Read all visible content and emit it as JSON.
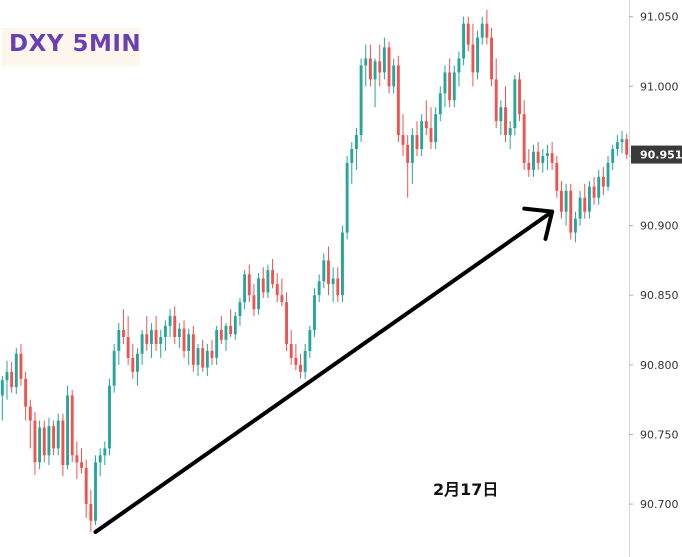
{
  "chart_data": {
    "type": "candlestick",
    "title": "DXY 5MIN",
    "annotation": "2月17日",
    "y_ticks": [
      "91.050",
      "91.000",
      "90.950",
      "90.900",
      "90.850",
      "90.800",
      "90.750",
      "90.700"
    ],
    "y_tick_values": [
      91.05,
      91.0,
      90.95,
      90.9,
      90.85,
      90.8,
      90.75,
      90.7
    ],
    "ylim": [
      90.662,
      91.062
    ],
    "last_price": "90.951",
    "grid": false,
    "colors": {
      "up": "#26a69a",
      "down": "#ef5350",
      "arrow": "#000000",
      "title": "#6a3fb0",
      "price_tag": "#3a3a3a"
    },
    "arrow": {
      "from": {
        "bar": 20,
        "price": 90.68
      },
      "to": {
        "bar": 118,
        "price": 90.91
      }
    },
    "candles": [
      [
        90.778,
        90.792,
        90.76,
        90.789
      ],
      [
        90.789,
        90.803,
        90.775,
        90.795
      ],
      [
        90.795,
        90.802,
        90.78,
        90.784
      ],
      [
        90.784,
        90.812,
        90.779,
        90.808
      ],
      [
        90.808,
        90.815,
        90.785,
        90.79
      ],
      [
        90.79,
        90.795,
        90.76,
        90.77
      ],
      [
        90.77,
        90.775,
        90.74,
        90.76
      ],
      [
        90.76,
        90.766,
        90.721,
        90.73
      ],
      [
        90.73,
        90.76,
        90.725,
        90.755
      ],
      [
        90.755,
        90.76,
        90.73,
        90.735
      ],
      [
        90.735,
        90.762,
        90.728,
        90.756
      ],
      [
        90.756,
        90.76,
        90.735,
        90.74
      ],
      [
        90.74,
        90.765,
        90.735,
        90.76
      ],
      [
        90.76,
        90.765,
        90.72,
        90.728
      ],
      [
        90.728,
        90.785,
        90.725,
        90.778
      ],
      [
        90.778,
        90.782,
        90.73,
        90.735
      ],
      [
        90.735,
        90.745,
        90.718,
        90.73
      ],
      [
        90.73,
        90.74,
        90.722,
        90.726
      ],
      [
        90.726,
        90.732,
        90.69,
        90.7
      ],
      [
        90.7,
        90.71,
        90.68,
        90.688
      ],
      [
        90.688,
        90.735,
        90.685,
        90.73
      ],
      [
        90.73,
        90.74,
        90.72,
        90.735
      ],
      [
        90.735,
        90.745,
        90.728,
        90.74
      ],
      [
        90.74,
        90.79,
        90.735,
        90.785
      ],
      [
        90.785,
        90.815,
        90.78,
        90.81
      ],
      [
        90.81,
        90.83,
        90.8,
        90.825
      ],
      [
        90.825,
        90.84,
        90.815,
        90.82
      ],
      [
        90.82,
        90.835,
        90.8,
        90.805
      ],
      [
        90.805,
        90.815,
        90.79,
        90.795
      ],
      [
        90.795,
        90.812,
        90.785,
        90.808
      ],
      [
        90.808,
        90.825,
        90.8,
        90.822
      ],
      [
        90.822,
        90.835,
        90.81,
        90.815
      ],
      [
        90.815,
        90.83,
        90.805,
        90.825
      ],
      [
        90.825,
        90.835,
        90.81,
        90.815
      ],
      [
        90.815,
        90.825,
        90.805,
        90.82
      ],
      [
        90.82,
        90.832,
        90.81,
        90.828
      ],
      [
        90.828,
        90.84,
        90.82,
        90.835
      ],
      [
        90.835,
        90.842,
        90.815,
        90.82
      ],
      [
        90.82,
        90.83,
        90.812,
        90.826
      ],
      [
        90.826,
        90.832,
        90.805,
        90.81
      ],
      [
        90.81,
        90.826,
        90.8,
        90.822
      ],
      [
        90.822,
        90.828,
        90.795,
        90.8
      ],
      [
        90.8,
        90.815,
        90.792,
        90.812
      ],
      [
        90.812,
        90.818,
        90.795,
        90.798
      ],
      [
        90.798,
        90.815,
        90.792,
        90.81
      ],
      [
        90.81,
        90.818,
        90.8,
        90.805
      ],
      [
        90.805,
        90.828,
        90.8,
        90.825
      ],
      [
        90.825,
        90.835,
        90.815,
        90.818
      ],
      [
        90.818,
        90.83,
        90.81,
        90.828
      ],
      [
        90.828,
        90.84,
        90.82,
        90.822
      ],
      [
        90.822,
        90.838,
        90.818,
        90.835
      ],
      [
        90.835,
        90.848,
        90.828,
        90.845
      ],
      [
        90.845,
        90.868,
        90.84,
        90.865
      ],
      [
        90.865,
        90.872,
        90.845,
        90.85
      ],
      [
        90.85,
        90.858,
        90.835,
        90.84
      ],
      [
        90.84,
        90.866,
        90.836,
        90.862
      ],
      [
        90.862,
        90.87,
        90.848,
        90.852
      ],
      [
        90.852,
        90.872,
        90.848,
        90.868
      ],
      [
        90.868,
        90.876,
        90.855,
        90.858
      ],
      [
        90.858,
        90.866,
        90.845,
        90.85
      ],
      [
        90.85,
        90.862,
        90.842,
        90.845
      ],
      [
        90.845,
        90.852,
        90.81,
        90.815
      ],
      [
        90.815,
        90.825,
        90.8,
        90.805
      ],
      [
        90.805,
        90.815,
        90.796,
        90.8
      ],
      [
        90.8,
        90.808,
        90.79,
        90.795
      ],
      [
        90.795,
        90.815,
        90.79,
        90.81
      ],
      [
        90.81,
        90.828,
        90.805,
        90.825
      ],
      [
        90.825,
        90.855,
        90.82,
        90.85
      ],
      [
        90.85,
        90.865,
        90.845,
        90.86
      ],
      [
        90.86,
        90.88,
        90.855,
        90.875
      ],
      [
        90.875,
        90.885,
        90.85,
        90.858
      ],
      [
        90.858,
        90.87,
        90.845,
        90.862
      ],
      [
        90.862,
        90.87,
        90.845,
        90.85
      ],
      [
        90.85,
        90.9,
        90.845,
        90.895
      ],
      [
        90.895,
        90.95,
        90.89,
        90.945
      ],
      [
        90.945,
        90.96,
        90.93,
        90.955
      ],
      [
        90.955,
        90.97,
        90.94,
        90.965
      ],
      [
        90.965,
        91.02,
        90.96,
        91.015
      ],
      [
        91.015,
        91.03,
        91.0,
        91.02
      ],
      [
        91.02,
        91.03,
        91.0,
        91.005
      ],
      [
        91.005,
        91.02,
        90.985,
        91.018
      ],
      [
        91.018,
        91.03,
        91.0,
        91.01
      ],
      [
        91.01,
        91.035,
        91.005,
        91.028
      ],
      [
        91.028,
        91.032,
        90.995,
        91.0
      ],
      [
        91.0,
        91.02,
        90.995,
        91.015
      ],
      [
        91.015,
        91.022,
        90.96,
        90.965
      ],
      [
        90.965,
        90.98,
        90.95,
        90.958
      ],
      [
        90.958,
        90.965,
        90.92,
        90.945
      ],
      [
        90.945,
        90.97,
        90.93,
        90.965
      ],
      [
        90.965,
        90.975,
        90.95,
        90.955
      ],
      [
        90.955,
        90.98,
        90.95,
        90.975
      ],
      [
        90.975,
        90.99,
        90.965,
        90.97
      ],
      [
        90.97,
        90.985,
        90.955,
        90.96
      ],
      [
        90.96,
        90.985,
        90.955,
        90.98
      ],
      [
        90.98,
        91.0,
        90.975,
        90.995
      ],
      [
        90.995,
        91.015,
        90.985,
        91.01
      ],
      [
        91.01,
        91.02,
        90.985,
        90.99
      ],
      [
        90.99,
        91.015,
        90.985,
        91.01
      ],
      [
        91.01,
        91.025,
        91.0,
        91.02
      ],
      [
        91.02,
        91.05,
        91.015,
        91.045
      ],
      [
        91.045,
        91.05,
        91.025,
        91.03
      ],
      [
        91.03,
        91.045,
        91.0,
        91.01
      ],
      [
        91.01,
        91.04,
        91.005,
        91.035
      ],
      [
        91.035,
        91.05,
        91.03,
        91.045
      ],
      [
        91.045,
        91.055,
        91.03,
        91.035
      ],
      [
        91.035,
        91.042,
        91.0,
        91.005
      ],
      [
        91.005,
        91.02,
        90.97,
        90.975
      ],
      [
        90.975,
        90.99,
        90.965,
        90.985
      ],
      [
        90.985,
        91.0,
        90.96,
        90.965
      ],
      [
        90.965,
        90.975,
        90.955,
        90.97
      ],
      [
        90.97,
        91.008,
        90.965,
        91.005
      ],
      [
        91.005,
        91.01,
        90.975,
        90.98
      ],
      [
        90.98,
        90.99,
        90.94,
        90.945
      ],
      [
        90.945,
        90.955,
        90.935,
        90.94
      ],
      [
        90.94,
        90.958,
        90.935,
        90.953
      ],
      [
        90.953,
        90.96,
        90.94,
        90.945
      ],
      [
        90.945,
        90.955,
        90.938,
        90.95
      ],
      [
        90.95,
        90.958,
        90.94,
        90.952
      ],
      [
        90.952,
        90.96,
        90.94,
        90.945
      ],
      [
        90.945,
        90.95,
        90.92,
        90.925
      ],
      [
        90.925,
        90.932,
        90.905,
        90.91
      ],
      [
        90.91,
        90.93,
        90.9,
        90.925
      ],
      [
        90.925,
        90.93,
        90.89,
        90.895
      ],
      [
        90.895,
        90.91,
        90.888,
        90.905
      ],
      [
        90.905,
        90.925,
        90.9,
        90.92
      ],
      [
        90.92,
        90.93,
        90.905,
        90.91
      ],
      [
        90.91,
        90.932,
        90.905,
        90.928
      ],
      [
        90.928,
        90.935,
        90.915,
        90.92
      ],
      [
        90.92,
        90.94,
        90.915,
        90.935
      ],
      [
        90.935,
        90.942,
        90.922,
        90.928
      ],
      [
        90.928,
        90.95,
        90.925,
        90.945
      ],
      [
        90.945,
        90.958,
        90.94,
        90.955
      ],
      [
        90.955,
        90.965,
        90.95,
        90.96
      ],
      [
        90.96,
        90.968,
        90.952,
        90.962
      ],
      [
        90.962,
        90.966,
        90.948,
        90.951
      ]
    ]
  }
}
